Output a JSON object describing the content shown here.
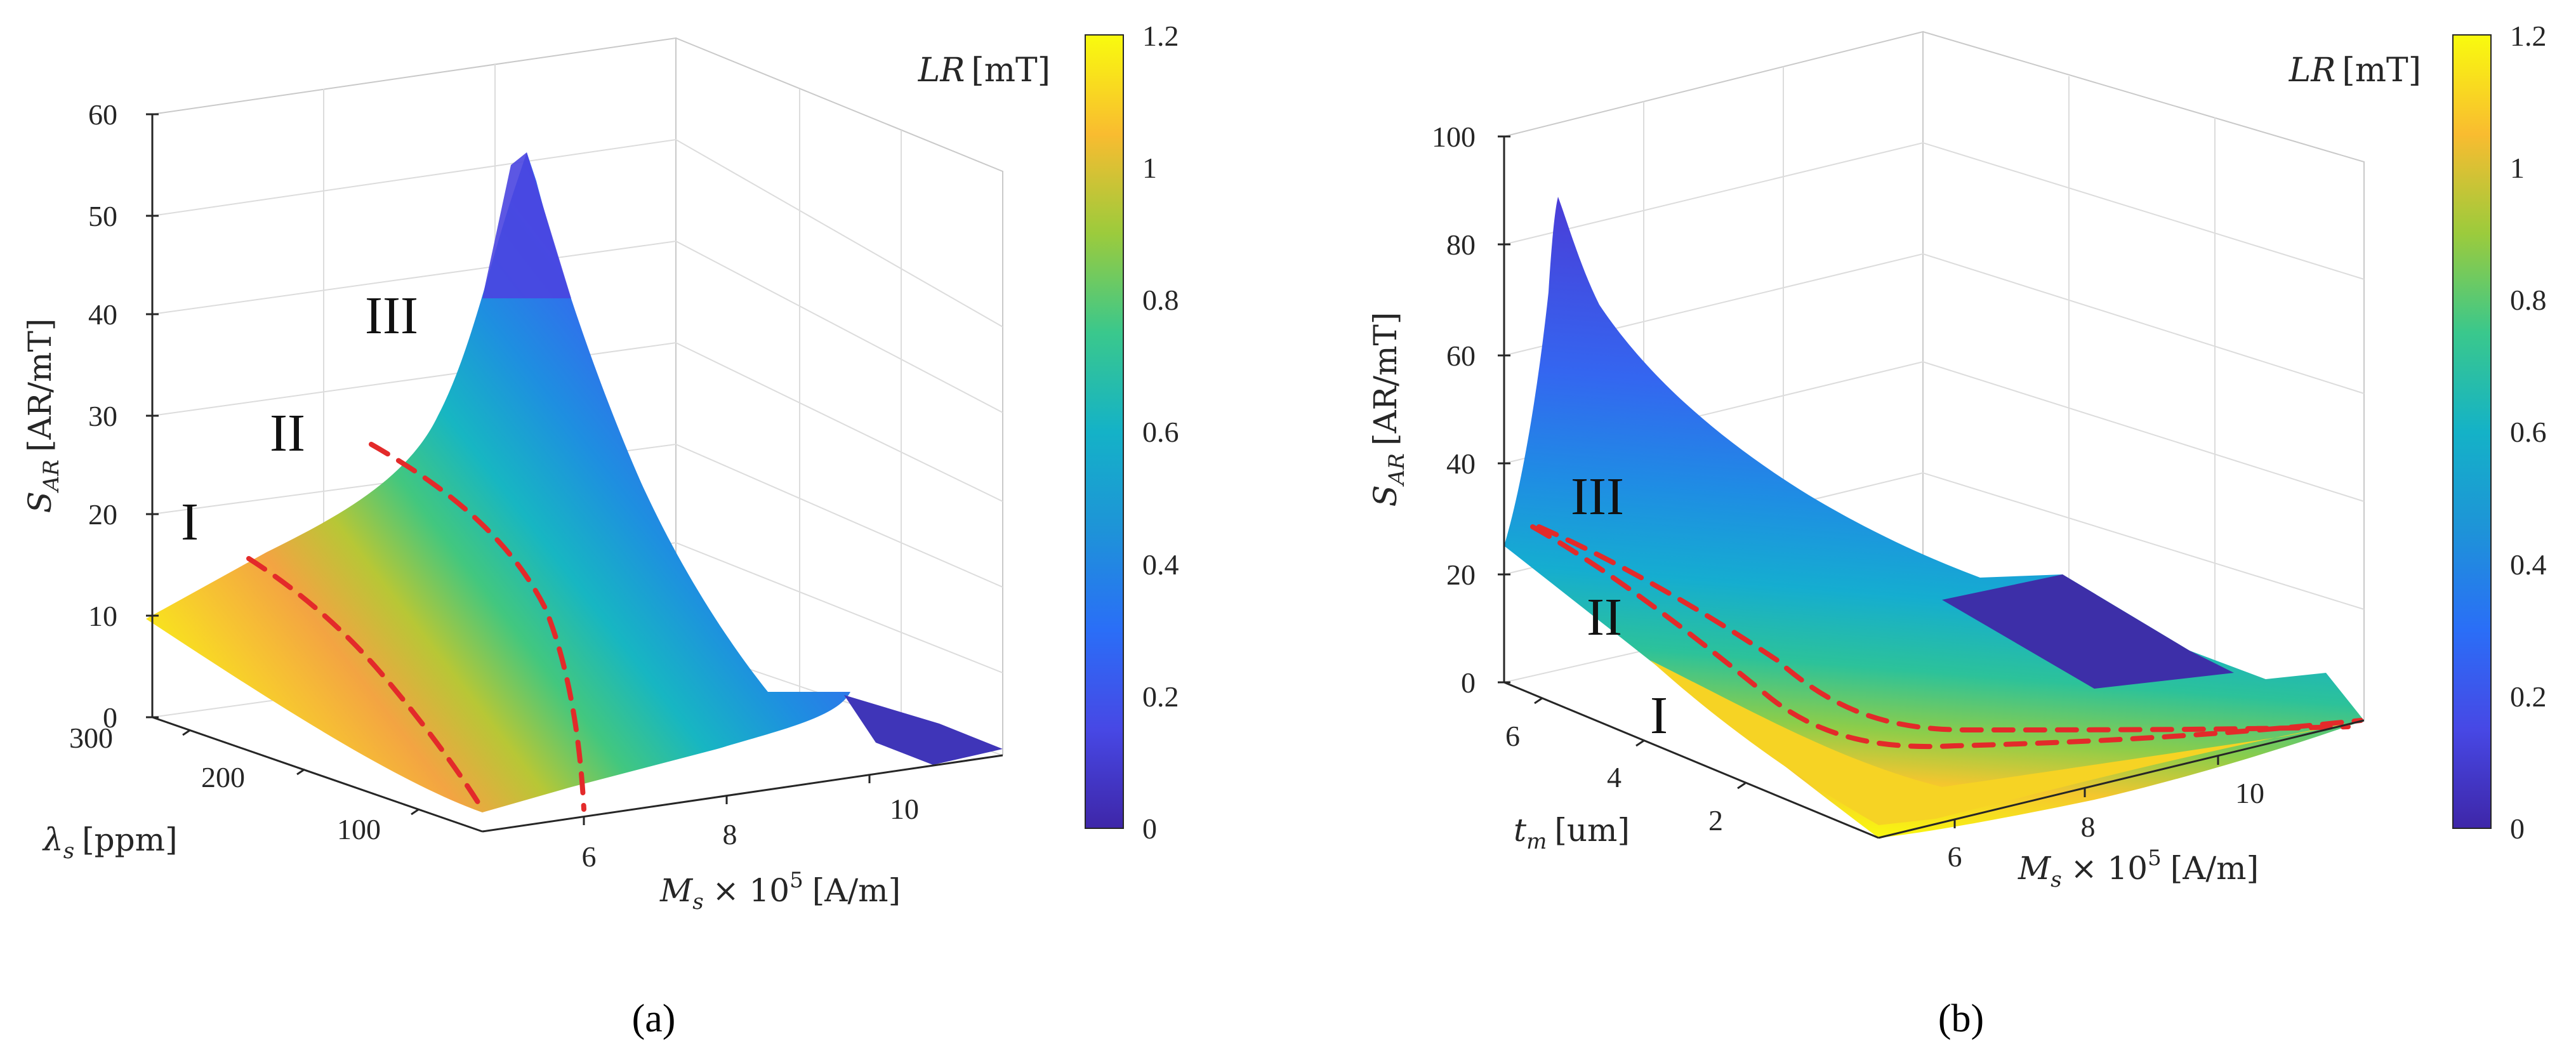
{
  "figure": {
    "caption_a": "(a)",
    "caption_b": "(b)"
  },
  "chart_data": [
    {
      "type": "surface",
      "panel": "a",
      "zlabel": "S_AR [AR/mT]",
      "zlabel_main": "S",
      "zlabel_sub": "AR",
      "zlabel_unit": "[AR/mT]",
      "zticks": [
        "0",
        "10",
        "20",
        "30",
        "40",
        "50",
        "60"
      ],
      "zlim": [
        0,
        60
      ],
      "ylabel": "λs [ppm]",
      "ylabel_main": "λ",
      "ylabel_sub": "s",
      "ylabel_unit": "[ppm]",
      "yticks": [
        "300",
        "200",
        "100"
      ],
      "xlabel": "Ms × 10^5 [A/m]",
      "xlabel_main": "M",
      "xlabel_sub": "s",
      "xlabel_times": "× 10",
      "xlabel_sup": "5",
      "xlabel_unit": "[A/m]",
      "xticks": [
        "6",
        "8",
        "10"
      ],
      "regions": [
        "I",
        "II",
        "III"
      ],
      "colorbar": {
        "title_var": "LR",
        "title_unit": "[mT]",
        "ticks": [
          "0",
          "0.2",
          "0.4",
          "0.6",
          "0.8",
          "1",
          "1.2"
        ],
        "range": [
          0,
          1.2
        ]
      },
      "peak": {
        "Ms": 6.8,
        "lambda_s": 300,
        "S_AR": 54
      },
      "boundary_lines": 2
    },
    {
      "type": "surface",
      "panel": "b",
      "zlabel": "S_AR [AR/mT]",
      "zlabel_main": "S",
      "zlabel_sub": "AR",
      "zlabel_unit": "[AR/mT]",
      "zticks": [
        "0",
        "20",
        "40",
        "60",
        "80",
        "100"
      ],
      "zlim": [
        0,
        100
      ],
      "ylabel": "tm [um]",
      "ylabel_main": "t",
      "ylabel_sub": "m",
      "ylabel_unit": "[um]",
      "yticks": [
        "6",
        "4",
        "2"
      ],
      "xlabel": "Ms × 10^5 [A/m]",
      "xlabel_main": "M",
      "xlabel_sub": "s",
      "xlabel_times": "× 10",
      "xlabel_sup": "5",
      "xlabel_unit": "[A/m]",
      "xticks": [
        "6",
        "8",
        "10"
      ],
      "regions": [
        "III",
        "II",
        "I"
      ],
      "colorbar": {
        "title_var": "LR",
        "title_unit": "[mT]",
        "ticks": [
          "0",
          "0.2",
          "0.4",
          "0.6",
          "0.8",
          "1",
          "1.2"
        ],
        "range": [
          0,
          1.2
        ]
      },
      "peak": {
        "Ms": 5.0,
        "t_m": 6,
        "S_AR": 88
      },
      "boundary_lines": 2
    }
  ]
}
